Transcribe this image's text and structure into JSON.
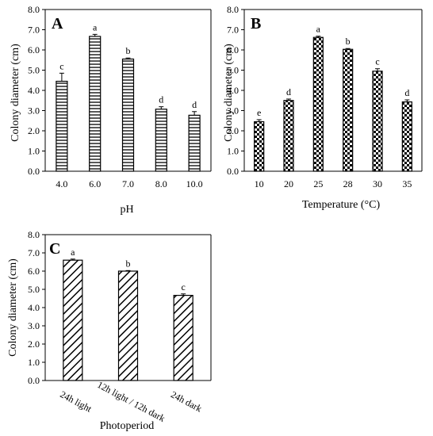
{
  "chart_data": [
    {
      "type": "bar",
      "panel_label": "A",
      "xlabel": "pH",
      "ylabel": "Colony diameter (cm)",
      "ylim": [
        0,
        8
      ],
      "yticks": [
        "0.0",
        "1.0",
        "2.0",
        "3.0",
        "4.0",
        "5.0",
        "6.0",
        "7.0",
        "8.0"
      ],
      "categories": [
        "4.0",
        "6.0",
        "7.0",
        "8.0",
        "10.0"
      ],
      "values": [
        4.45,
        6.67,
        5.55,
        3.07,
        2.77
      ],
      "errors": [
        0.4,
        0.1,
        0.05,
        0.12,
        0.18
      ],
      "letters": [
        "c",
        "a",
        "b",
        "d",
        "d"
      ],
      "pattern": "horizontal-stripes"
    },
    {
      "type": "bar",
      "panel_label": "B",
      "xlabel": "Temperature (°C)",
      "ylabel": "Colony diameter (cm)",
      "ylim": [
        0,
        8
      ],
      "yticks": [
        "0.0",
        "1.0",
        "2.0",
        "3.0",
        "4.0",
        "5.0",
        "6.0",
        "7.0",
        "8.0"
      ],
      "categories": [
        "10",
        "20",
        "25",
        "28",
        "30",
        "35"
      ],
      "values": [
        2.45,
        3.5,
        6.62,
        6.03,
        4.95,
        3.43
      ],
      "errors": [
        0.1,
        0.07,
        0.06,
        0.04,
        0.12,
        0.1
      ],
      "letters": [
        "e",
        "d",
        "a",
        "b",
        "c",
        "d"
      ],
      "pattern": "checkerboard"
    },
    {
      "type": "bar",
      "panel_label": "C",
      "xlabel": "Photoperiod",
      "ylabel": "Colony diameter (cm)",
      "ylim": [
        0,
        8
      ],
      "yticks": [
        "0.0",
        "1.0",
        "2.0",
        "3.0",
        "4.0",
        "5.0",
        "6.0",
        "7.0",
        "8.0"
      ],
      "categories": [
        "24h light",
        "12h light / 12h dark",
        "24h dark"
      ],
      "values": [
        6.6,
        6.0,
        4.67
      ],
      "errors": [
        0.06,
        0.03,
        0.08
      ],
      "letters": [
        "a",
        "b",
        "c"
      ],
      "pattern": "diagonal-stripes"
    }
  ]
}
